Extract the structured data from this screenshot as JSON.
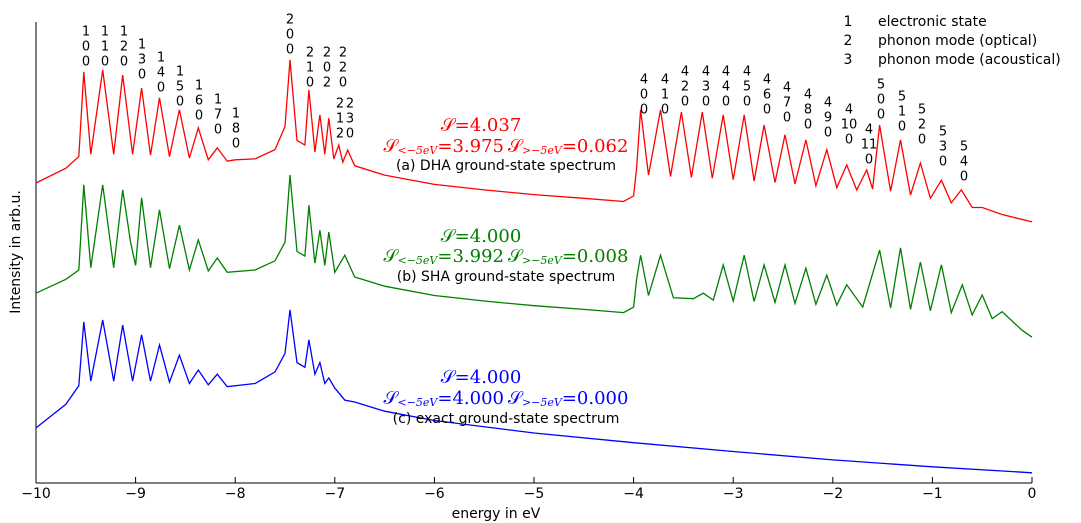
{
  "chart_data": {
    "type": "line",
    "xlabel": "energy in eV",
    "ylabel": "Intensity in arb.u.",
    "xlim": [
      -10,
      0
    ],
    "ylim": [
      0,
      100
    ],
    "xticks": [
      {
        "value": -10,
        "label": "−10"
      },
      {
        "value": -9,
        "label": "−9"
      },
      {
        "value": -8,
        "label": "−8"
      },
      {
        "value": -7,
        "label": "−7"
      },
      {
        "value": -6,
        "label": "−6"
      },
      {
        "value": -5,
        "label": "−5"
      },
      {
        "value": -4,
        "label": "−4"
      },
      {
        "value": -3,
        "label": "−3"
      },
      {
        "value": -2,
        "label": "−2"
      },
      {
        "value": -1,
        "label": "−1"
      },
      0
    ],
    "legend": [
      {
        "index": 1,
        "text": "electronic state"
      },
      {
        "index": 2,
        "text": "phonon mode (optical)"
      },
      {
        "index": 3,
        "text": "phonon mode (acoustical)"
      }
    ],
    "peak_labels": [
      [
        "1",
        "0",
        "0"
      ],
      [
        "1",
        "1",
        "0"
      ],
      [
        "1",
        "2",
        "0"
      ],
      [
        "1",
        "3",
        "0"
      ],
      [
        "1",
        "4",
        "0"
      ],
      [
        "1",
        "5",
        "0"
      ],
      [
        "1",
        "6",
        "0"
      ],
      [
        "1",
        "7",
        "0"
      ],
      [
        "1",
        "8",
        "0"
      ],
      [
        "2",
        "0",
        "0"
      ],
      [
        "2",
        "1",
        "0"
      ],
      [
        "2",
        "0",
        "2"
      ],
      [
        "2",
        "2",
        "0"
      ],
      [
        "2",
        "1",
        "2"
      ],
      [
        "2",
        "3",
        "0"
      ],
      [
        "4",
        "0",
        "0"
      ],
      [
        "4",
        "1",
        "0"
      ],
      [
        "4",
        "2",
        "0"
      ],
      [
        "4",
        "3",
        "0"
      ],
      [
        "4",
        "4",
        "0"
      ],
      [
        "4",
        "5",
        "0"
      ],
      [
        "4",
        "6",
        "0"
      ],
      [
        "4",
        "7",
        "0"
      ],
      [
        "4",
        "8",
        "0"
      ],
      [
        "4",
        "9",
        "0"
      ],
      [
        "4",
        "10",
        "0"
      ],
      [
        "4",
        "11",
        "0"
      ],
      [
        "5",
        "0",
        "0"
      ],
      [
        "5",
        "1",
        "0"
      ],
      [
        "5",
        "2",
        "0"
      ],
      [
        "5",
        "3",
        "0"
      ],
      [
        "5",
        "4",
        "0"
      ]
    ],
    "series": [
      {
        "name": "(a) DHA ground-state spectrum",
        "color": "#ff0000",
        "s_total": [
          "𝒮",
          "=4.037"
        ],
        "s_low": [
          "𝒮",
          "<−5eV",
          "=3.975"
        ],
        "s_high": [
          "𝒮",
          ">−5eV",
          "=0.062"
        ],
        "x": [
          -10,
          -9.7,
          -9.57,
          -9.52,
          -9.45,
          -9.33,
          -9.22,
          -9.13,
          -9.03,
          -8.94,
          -8.85,
          -8.76,
          -8.66,
          -8.56,
          -8.46,
          -8.37,
          -8.27,
          -8.18,
          -8.08,
          -8.0,
          -7.8,
          -7.6,
          -7.5,
          -7.45,
          -7.38,
          -7.3,
          -7.26,
          -7.2,
          -7.15,
          -7.1,
          -7.06,
          -7.01,
          -6.96,
          -6.92,
          -6.87,
          -6.8,
          -6.5,
          -6.0,
          -5.5,
          -5.0,
          -4.5,
          -4.1,
          -4.0,
          -3.97,
          -3.93,
          -3.85,
          -3.73,
          -3.63,
          -3.52,
          -3.42,
          -3.31,
          -3.21,
          -3.1,
          -3.0,
          -2.89,
          -2.79,
          -2.69,
          -2.58,
          -2.48,
          -2.38,
          -2.27,
          -2.17,
          -2.06,
          -1.96,
          -1.86,
          -1.76,
          -1.66,
          -1.6,
          -1.53,
          -1.42,
          -1.32,
          -1.22,
          -1.12,
          -1.02,
          -0.91,
          -0.81,
          -0.71,
          -0.6,
          -0.5,
          -0.3,
          0
        ],
        "values": [
          64.8,
          68,
          70.5,
          88.8,
          71,
          89.2,
          71,
          88.1,
          71,
          85.3,
          70.8,
          83.2,
          70.5,
          80.6,
          70.2,
          76.7,
          69.8,
          72.4,
          69.5,
          69.8,
          70,
          72,
          77,
          91.4,
          74,
          73,
          84.9,
          71.5,
          79.5,
          71,
          78.8,
          70,
          73.0,
          69.3,
          71.9,
          68.5,
          66.5,
          64.5,
          63.3,
          62.3,
          61.5,
          60.8,
          62,
          68,
          80.6,
          66.5,
          80.6,
          66.2,
          80.1,
          66,
          80.1,
          65.8,
          79.5,
          65.5,
          79.5,
          65.2,
          77.3,
          64.9,
          75.2,
          64.6,
          74.1,
          64.2,
          72.0,
          63.8,
          68.7,
          63.3,
          67.6,
          63.5,
          77.3,
          63,
          74.1,
          62.2,
          69.1,
          61.5,
          65.4,
          60.5,
          63.3,
          59.5,
          59.5,
          58,
          56.4
        ]
      },
      {
        "name": "(b) SHA ground-state spectrum",
        "color": "#007f00",
        "s_total": [
          "𝒮",
          "=4.000"
        ],
        "s_low": [
          "𝒮",
          "<−5eV",
          "=3.992"
        ],
        "s_high": [
          "𝒮",
          ">−5eV",
          "=0.008"
        ],
        "x": [
          -10,
          -9.7,
          -9.57,
          -9.52,
          -9.45,
          -9.33,
          -9.22,
          -9.13,
          -9.05,
          -9.0,
          -8.94,
          -8.85,
          -8.76,
          -8.66,
          -8.56,
          -8.46,
          -8.37,
          -8.27,
          -8.18,
          -8.08,
          -7.8,
          -7.6,
          -7.5,
          -7.45,
          -7.38,
          -7.3,
          -7.26,
          -7.2,
          -7.15,
          -7.1,
          -7.06,
          -7.0,
          -6.9,
          -6.8,
          -6.5,
          -6.0,
          -5.5,
          -5.0,
          -4.5,
          -4.1,
          -4.0,
          -3.97,
          -3.93,
          -3.85,
          -3.73,
          -3.6,
          -3.4,
          -3.3,
          -3.2,
          -3.1,
          -3.0,
          -2.89,
          -2.79,
          -2.69,
          -2.58,
          -2.48,
          -2.38,
          -2.27,
          -2.17,
          -2.06,
          -1.96,
          -1.86,
          -1.7,
          -1.53,
          -1.42,
          -1.32,
          -1.22,
          -1.12,
          -1.02,
          -0.91,
          -0.81,
          -0.7,
          -0.6,
          -0.5,
          -0.4,
          -0.3,
          -0.1,
          0
        ],
        "values": [
          41.0,
          44,
          46,
          64.4,
          46.5,
          64.4,
          46.5,
          63.3,
          52,
          47,
          61.6,
          46.5,
          59.0,
          46.3,
          55.7,
          46,
          52.5,
          45.8,
          48.6,
          45.5,
          46,
          48,
          52,
          66.5,
          50,
          49,
          60.0,
          47.5,
          54.6,
          47,
          54.2,
          45.5,
          49.2,
          44.5,
          42.5,
          40.5,
          39.3,
          38.3,
          37.5,
          36.8,
          38,
          44,
          49.2,
          40.5,
          49.2,
          40,
          39.8,
          41,
          39.5,
          47.1,
          39.3,
          49.2,
          39.2,
          47.1,
          39,
          47.1,
          38.8,
          46.4,
          38.6,
          44.9,
          38.4,
          42.8,
          38,
          50.3,
          37.8,
          50.8,
          37.5,
          47.7,
          37.2,
          47.1,
          36.8,
          42.8,
          36.3,
          40.6,
          35.5,
          37,
          33,
          31.5
        ]
      },
      {
        "name": "(c) exact ground-state spectrum",
        "color": "#0000ff",
        "s_total": [
          "𝒮",
          "=4.000"
        ],
        "s_low": [
          "𝒮",
          "<−5eV",
          "=4.000"
        ],
        "s_high": [
          "𝒮",
          ">−5eV",
          "=0.000"
        ],
        "x": [
          -10,
          -9.7,
          -9.57,
          -9.52,
          -9.45,
          -9.33,
          -9.22,
          -9.13,
          -9.03,
          -8.94,
          -8.85,
          -8.76,
          -8.66,
          -8.56,
          -8.46,
          -8.37,
          -8.27,
          -8.18,
          -8.08,
          -7.8,
          -7.6,
          -7.5,
          -7.45,
          -7.38,
          -7.3,
          -7.26,
          -7.2,
          -7.15,
          -7.1,
          -7.06,
          -7.0,
          -6.9,
          -6.8,
          -6.5,
          -6.0,
          -5.0,
          -4.0,
          -3.0,
          -2.0,
          -1.0,
          0
        ],
        "values": [
          11.9,
          17,
          21,
          34.8,
          22,
          35.2,
          22,
          34.1,
          22,
          32.0,
          22,
          29.8,
          21.8,
          27.6,
          21.5,
          24.4,
          21.2,
          23.5,
          20.8,
          21.5,
          24,
          28,
          37.4,
          26,
          25,
          30.9,
          23.5,
          26,
          21.5,
          22.7,
          20.5,
          17.9,
          17.5,
          15.5,
          13.5,
          10.8,
          8.7,
          6.8,
          5.0,
          3.5,
          2.2
        ]
      }
    ]
  }
}
